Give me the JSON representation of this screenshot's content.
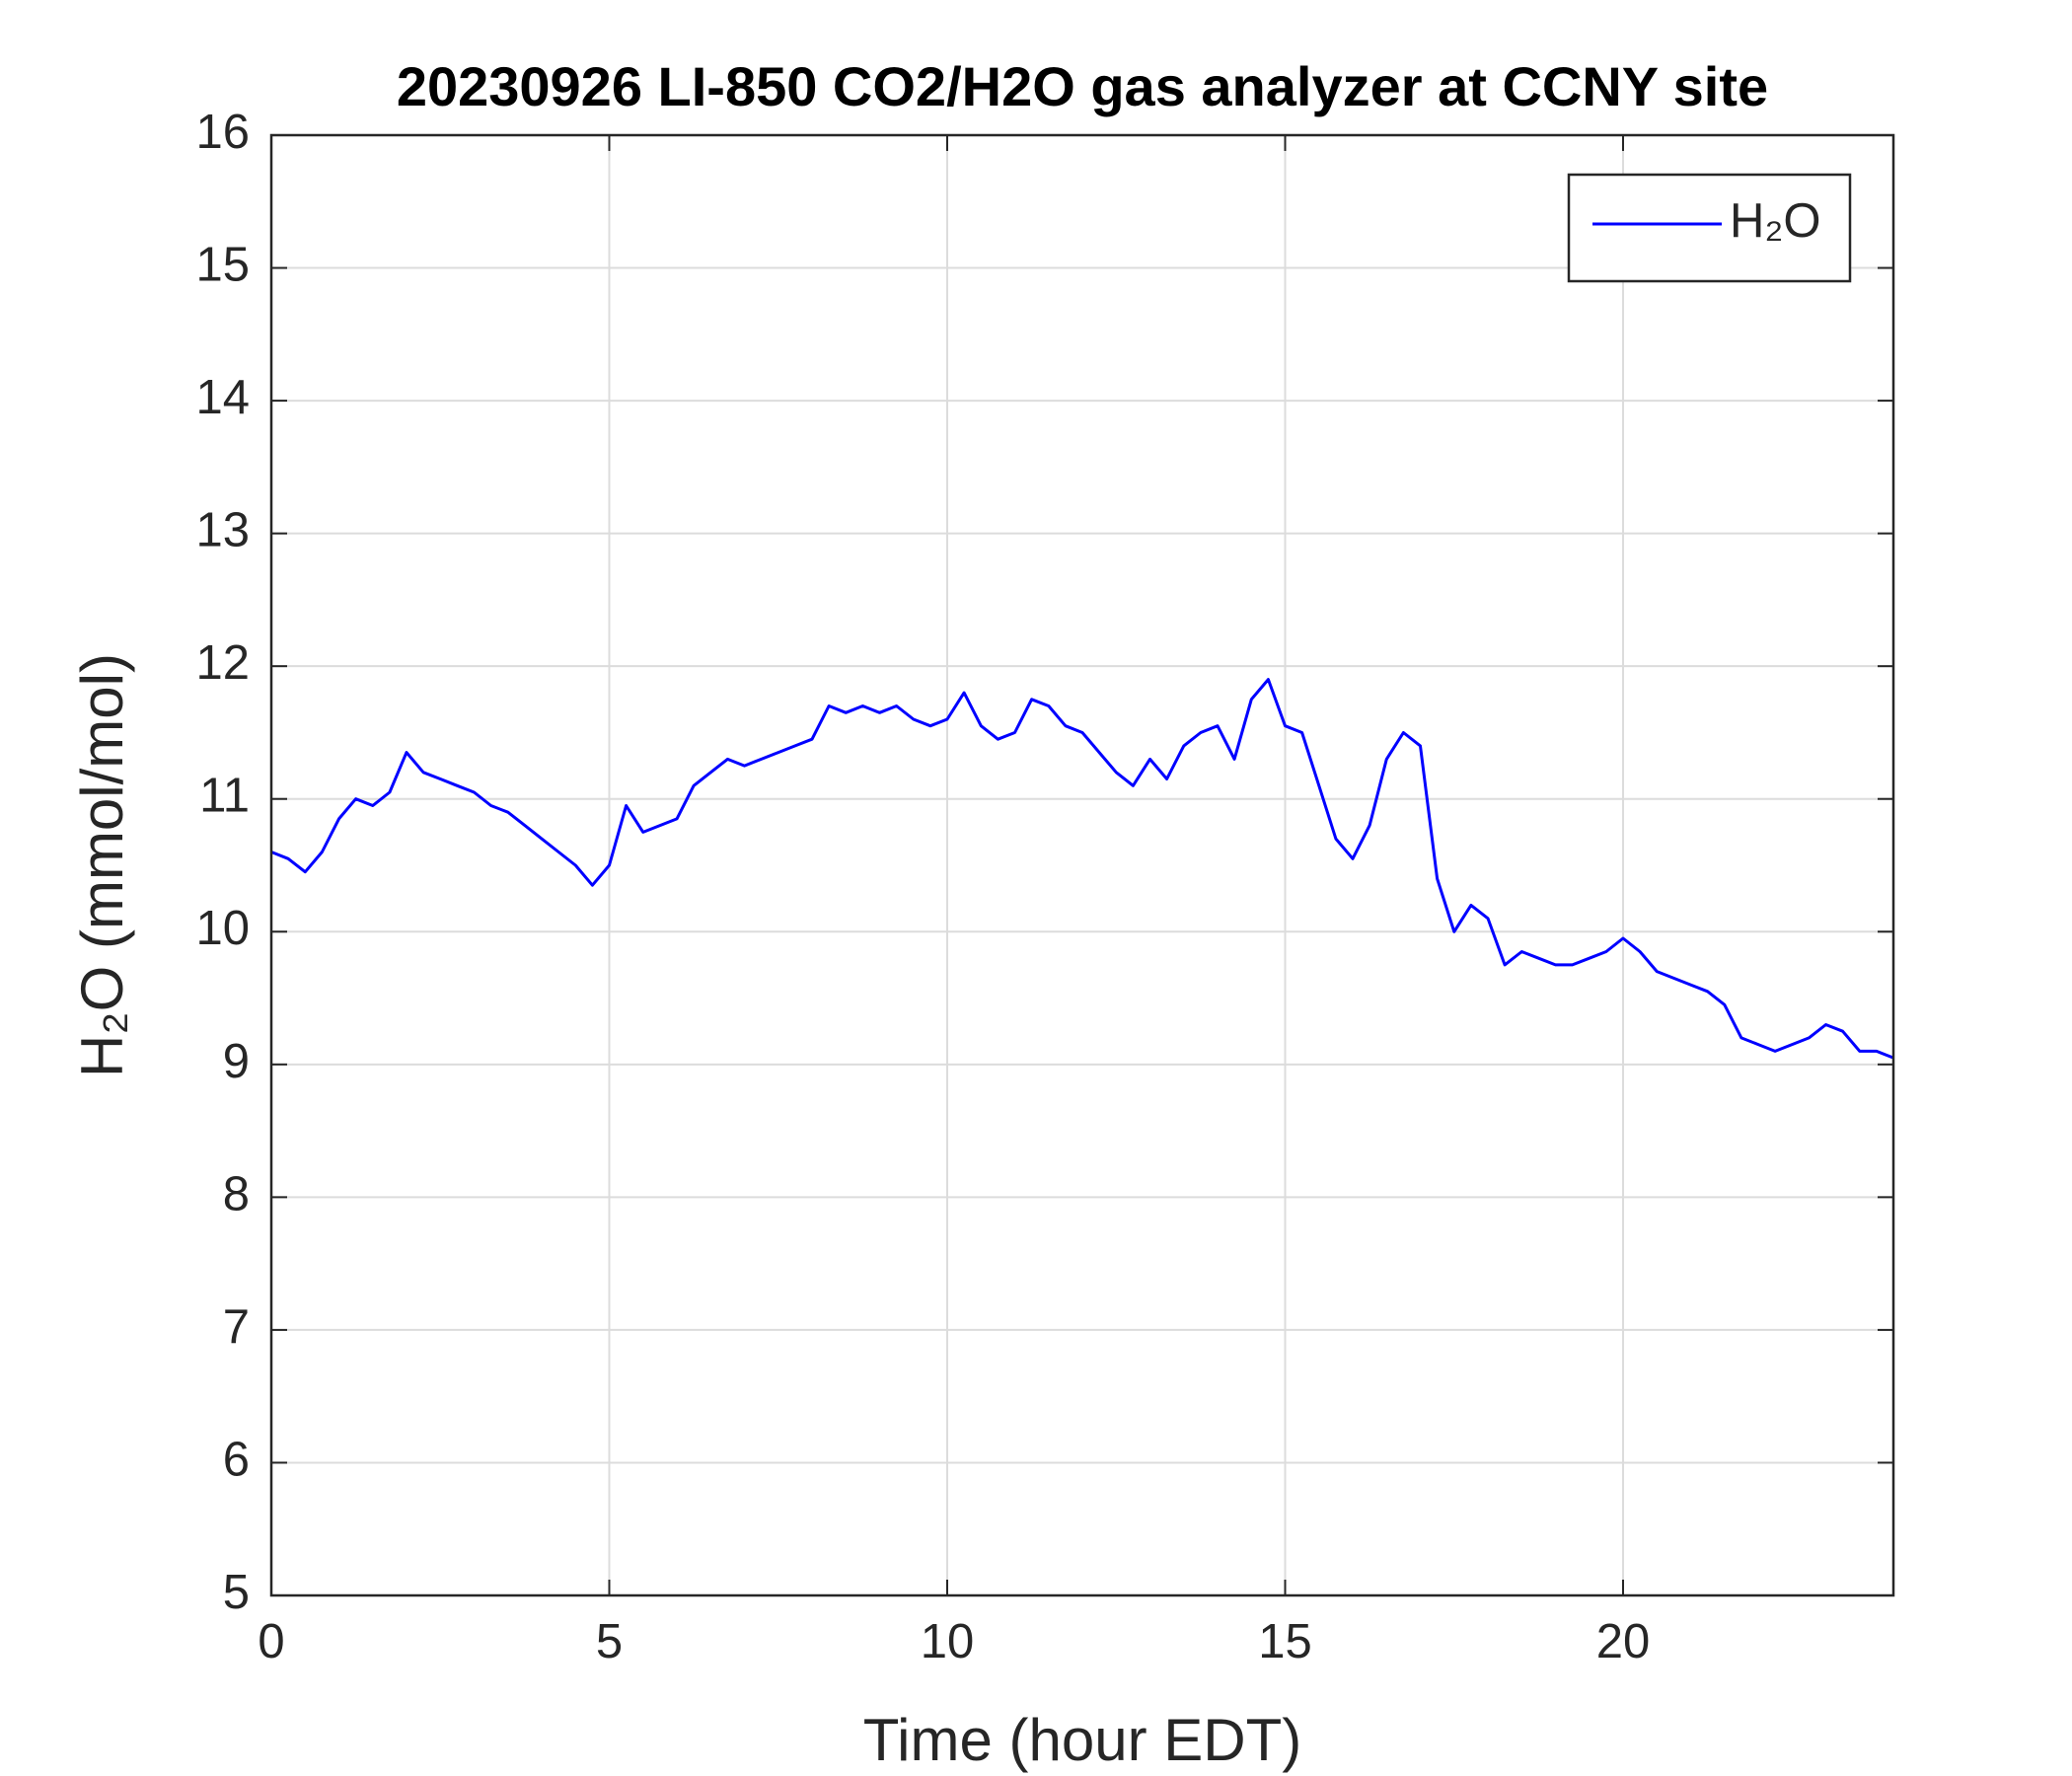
{
  "chart_data": {
    "type": "line",
    "title": "20230926 LI-850 CO2/H2O gas analyzer at CCNY site",
    "x_label": "Time (hour EDT)",
    "y_label": "H₂O (mmol/mol)",
    "x": [
      0,
      0.25,
      0.5,
      0.75,
      1,
      1.25,
      1.5,
      1.75,
      2,
      2.25,
      2.5,
      2.75,
      3,
      3.25,
      3.5,
      3.75,
      4,
      4.25,
      4.5,
      4.75,
      5,
      5.25,
      5.5,
      5.75,
      6,
      6.25,
      6.5,
      6.75,
      7,
      7.25,
      7.5,
      7.75,
      8,
      8.25,
      8.5,
      8.75,
      9,
      9.25,
      9.5,
      9.75,
      10,
      10.25,
      10.5,
      10.75,
      11,
      11.25,
      11.5,
      11.75,
      12,
      12.25,
      12.5,
      12.75,
      13,
      13.25,
      13.5,
      13.75,
      14,
      14.25,
      14.5,
      14.75,
      15,
      15.25,
      15.5,
      15.75,
      16,
      16.25,
      16.5,
      16.75,
      17,
      17.25,
      17.5,
      17.75,
      18,
      18.25,
      18.5,
      18.75,
      19,
      19.25,
      19.5,
      19.75,
      20,
      20.25,
      20.5,
      20.75,
      21,
      21.25,
      21.5,
      21.75,
      22,
      22.25,
      22.5,
      22.75,
      23,
      23.25,
      23.5,
      23.75,
      24
    ],
    "series": [
      {
        "name": "H₂O",
        "color": "#0000ff",
        "values": [
          10.6,
          10.55,
          10.45,
          10.6,
          10.85,
          11.0,
          10.95,
          11.05,
          11.35,
          11.2,
          11.15,
          11.1,
          11.05,
          10.95,
          10.9,
          10.8,
          10.7,
          10.6,
          10.5,
          10.35,
          10.5,
          10.95,
          10.75,
          10.8,
          10.85,
          11.1,
          11.2,
          11.3,
          11.25,
          11.3,
          11.35,
          11.4,
          11.45,
          11.7,
          11.65,
          11.7,
          11.65,
          11.7,
          11.6,
          11.55,
          11.6,
          11.8,
          11.55,
          11.45,
          11.5,
          11.75,
          11.7,
          11.55,
          11.5,
          11.35,
          11.2,
          11.1,
          11.3,
          11.15,
          11.4,
          11.5,
          11.55,
          11.3,
          11.75,
          11.9,
          11.55,
          11.5,
          11.1,
          10.7,
          10.55,
          10.8,
          11.3,
          11.5,
          11.4,
          10.4,
          10.0,
          10.2,
          10.1,
          9.75,
          9.85,
          9.8,
          9.75,
          9.75,
          9.8,
          9.85,
          9.95,
          9.85,
          9.7,
          9.65,
          9.6,
          9.55,
          9.45,
          9.2,
          9.15,
          9.1,
          9.15,
          9.2,
          9.3,
          9.25,
          9.1,
          9.1,
          9.05
        ]
      }
    ],
    "xlim": [
      0,
      24
    ],
    "xticks": [
      0,
      5,
      10,
      15,
      20
    ],
    "ylim": [
      5,
      16
    ],
    "yticks": [
      5,
      6,
      7,
      8,
      9,
      10,
      11,
      12,
      13,
      14,
      15,
      16
    ],
    "grid": true,
    "legend": "northeast"
  }
}
